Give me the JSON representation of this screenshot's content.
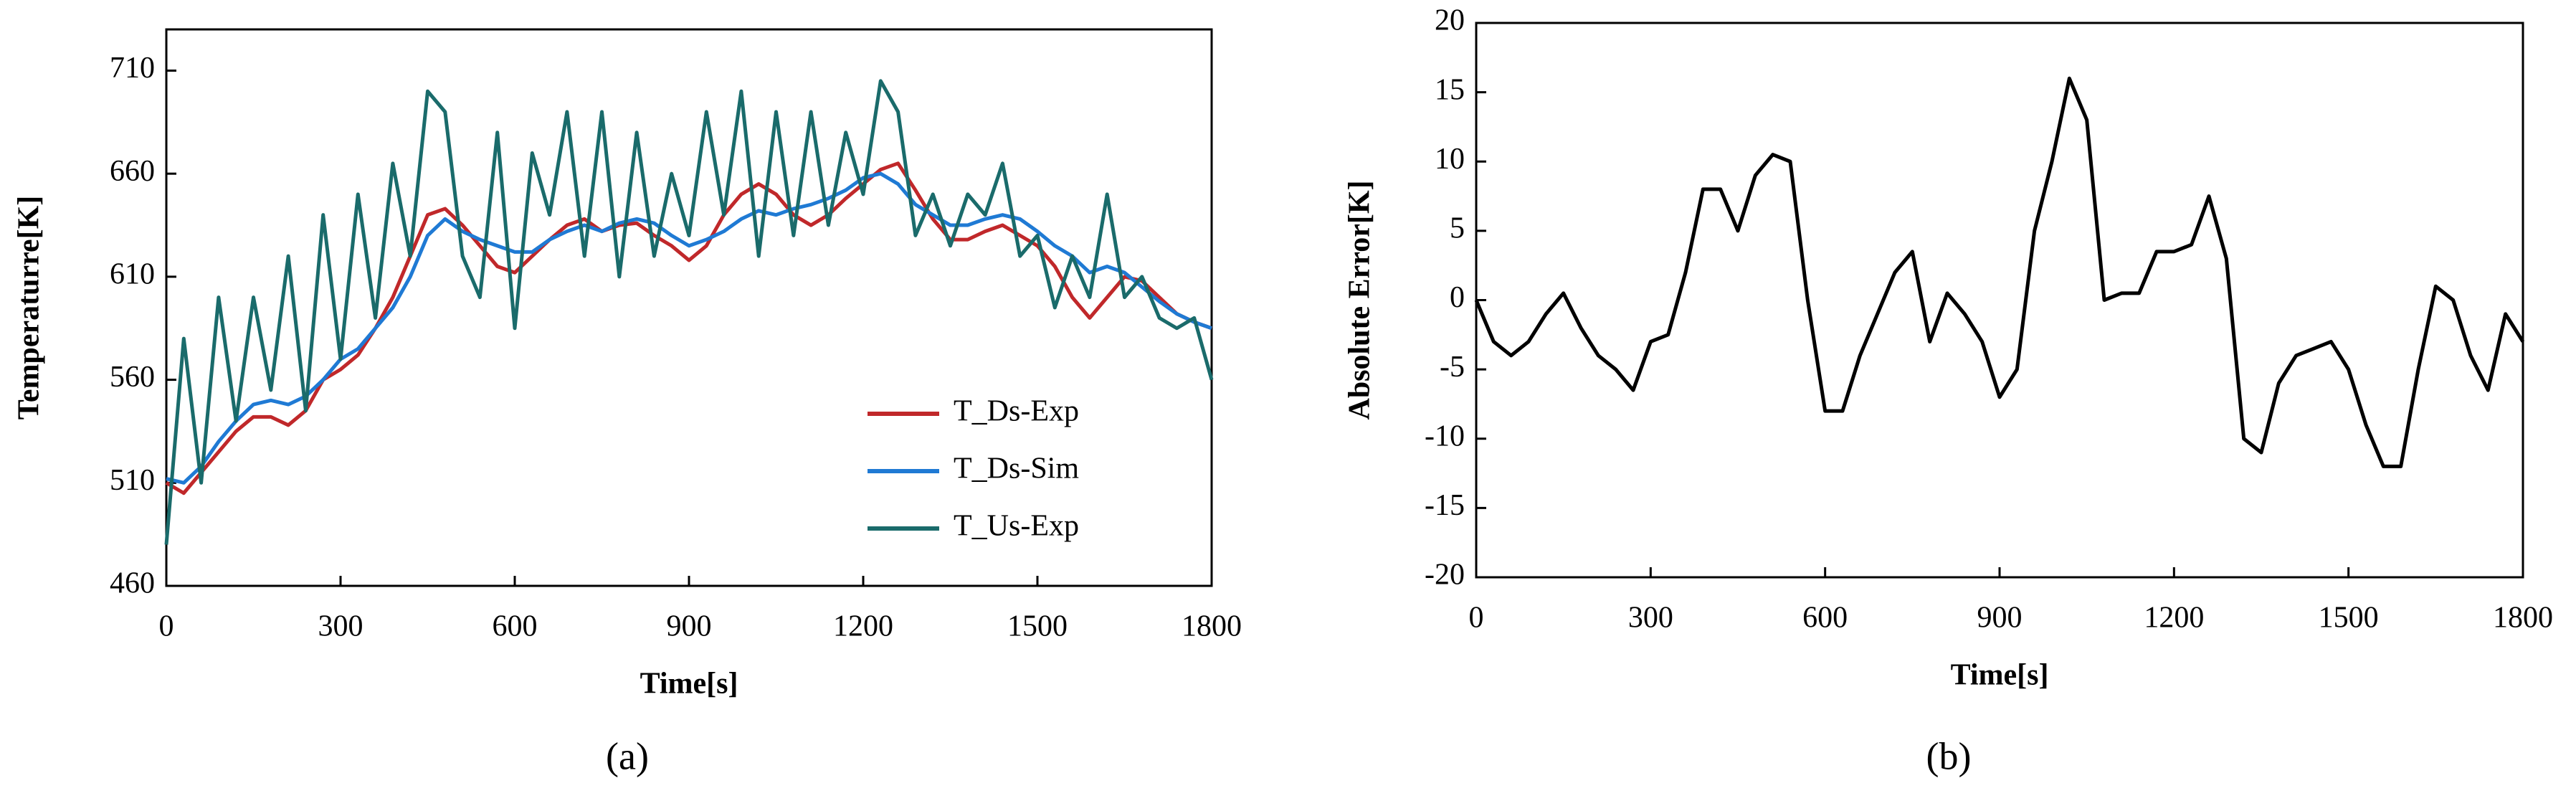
{
  "chart_data": [
    {
      "type": "line",
      "caption": "(a)",
      "x_label": "Time[s]",
      "y_label": "Temperaturre[K]",
      "x": [
        0,
        30,
        60,
        90,
        120,
        150,
        180,
        210,
        240,
        270,
        300,
        330,
        360,
        390,
        420,
        450,
        480,
        510,
        540,
        570,
        600,
        630,
        660,
        690,
        720,
        750,
        780,
        810,
        840,
        870,
        900,
        930,
        960,
        990,
        1020,
        1050,
        1080,
        1110,
        1140,
        1170,
        1200,
        1230,
        1260,
        1290,
        1320,
        1350,
        1380,
        1410,
        1440,
        1470,
        1500,
        1530,
        1560,
        1590,
        1620,
        1650,
        1680,
        1710,
        1740,
        1770,
        1800
      ],
      "series": [
        {
          "name": "T_Ds-Exp",
          "color": "#c0282a",
          "values": [
            510,
            505,
            515,
            525,
            535,
            542,
            542,
            538,
            545,
            560,
            565,
            572,
            585,
            600,
            620,
            640,
            643,
            635,
            625,
            615,
            612,
            620,
            628,
            635,
            638,
            632,
            635,
            636,
            630,
            625,
            618,
            625,
            640,
            650,
            655,
            650,
            640,
            635,
            640,
            648,
            655,
            662,
            665,
            652,
            638,
            628,
            628,
            632,
            635,
            630,
            625,
            615,
            600,
            590,
            600,
            610,
            608,
            600,
            592,
            588,
            585
          ]
        },
        {
          "name": "T_Ds-Sim",
          "color": "#1f7ad4",
          "values": [
            512,
            510,
            518,
            530,
            540,
            548,
            550,
            548,
            552,
            560,
            570,
            575,
            585,
            595,
            610,
            630,
            638,
            632,
            628,
            625,
            622,
            622,
            628,
            632,
            635,
            632,
            636,
            638,
            636,
            630,
            625,
            628,
            632,
            638,
            642,
            640,
            643,
            645,
            648,
            652,
            658,
            660,
            655,
            645,
            640,
            635,
            635,
            638,
            640,
            638,
            632,
            625,
            620,
            612,
            615,
            612,
            605,
            598,
            592,
            588,
            585
          ]
        },
        {
          "name": "T_Us-Exp",
          "color": "#1a6b6b",
          "values": [
            480,
            580,
            510,
            600,
            540,
            600,
            555,
            620,
            545,
            640,
            570,
            650,
            590,
            665,
            620,
            700,
            690,
            620,
            600,
            680,
            585,
            670,
            640,
            690,
            620,
            690,
            610,
            680,
            620,
            660,
            630,
            690,
            640,
            700,
            620,
            690,
            630,
            690,
            635,
            680,
            650,
            705,
            690,
            630,
            650,
            625,
            650,
            640,
            665,
            620,
            630,
            595,
            620,
            600,
            650,
            600,
            610,
            590,
            585,
            590,
            560
          ]
        }
      ],
      "xlim": [
        0,
        1800
      ],
      "xticks": [
        0,
        300,
        600,
        900,
        1200,
        1500,
        1800
      ],
      "ylim": [
        460,
        730
      ],
      "yticks": [
        460,
        510,
        560,
        610,
        660,
        710
      ],
      "legend": "lower right"
    },
    {
      "type": "line",
      "caption": "(b)",
      "x_label": "Time[s]",
      "y_label": "Absolute Error[K]",
      "x": [
        0,
        30,
        60,
        90,
        120,
        150,
        180,
        210,
        240,
        270,
        300,
        330,
        360,
        390,
        420,
        450,
        480,
        510,
        540,
        570,
        600,
        630,
        660,
        690,
        720,
        750,
        780,
        810,
        840,
        870,
        900,
        930,
        960,
        990,
        1020,
        1050,
        1080,
        1110,
        1140,
        1170,
        1200,
        1230,
        1260,
        1290,
        1320,
        1350,
        1380,
        1410,
        1440,
        1470,
        1500,
        1530,
        1560,
        1590,
        1620,
        1650,
        1680,
        1710,
        1740,
        1770,
        1800
      ],
      "series": [
        {
          "color": "#000000",
          "values": [
            0,
            -3,
            -4,
            -3,
            -1,
            0.5,
            -2,
            -4,
            -5,
            -6.5,
            -3,
            -2.5,
            2,
            8,
            8,
            5,
            9,
            10.5,
            10,
            0,
            -8,
            -8,
            -4,
            -1,
            2,
            3.5,
            -3,
            0.5,
            -1,
            -3,
            -7,
            -5,
            5,
            10,
            16,
            13,
            0,
            0.5,
            0.5,
            3.5,
            3.5,
            4,
            7.5,
            3,
            -10,
            -11,
            -6,
            -4,
            -3.5,
            -3,
            -5,
            -9,
            -12,
            -12,
            -5,
            1,
            0,
            -4,
            -6.5,
            -1,
            -3
          ]
        }
      ],
      "xlim": [
        0,
        1800
      ],
      "xticks": [
        0,
        300,
        600,
        900,
        1200,
        1500,
        1800
      ],
      "ylim": [
        -20,
        20
      ],
      "yticks": [
        -20,
        -15,
        -10,
        -5,
        0,
        5,
        10,
        15,
        20
      ]
    }
  ]
}
